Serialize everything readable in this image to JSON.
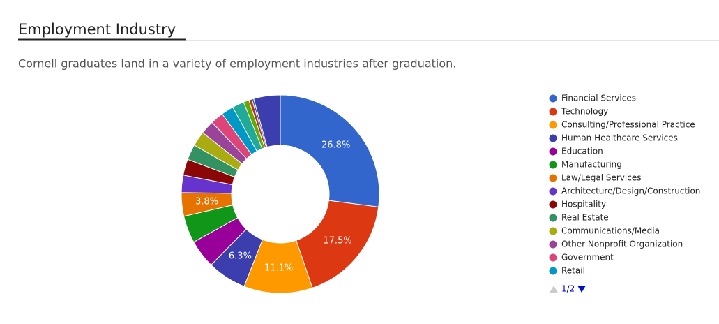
{
  "chart_data": {
    "type": "donut",
    "title": "Employment Industry",
    "subtitle": "Cornell graduates land in a variety of employment industries after graduation.",
    "categories": [
      "Financial Services",
      "Technology",
      "Consulting/Professional Practice",
      "Human Healthcare Services",
      "Education",
      "Manufacturing",
      "Law/Legal Services",
      "Architecture/Design/Construction",
      "Hospitality",
      "Real Estate",
      "Communications/Media",
      "Other Nonprofit Organization",
      "Government",
      "Retail",
      null,
      null,
      null,
      null,
      null
    ],
    "values": [
      26.8,
      17.5,
      11.1,
      6.3,
      4.6,
      4.4,
      3.8,
      2.8,
      2.6,
      2.5,
      2.4,
      2.2,
      2.1,
      2.0,
      1.9,
      0.9,
      0.5,
      0.3,
      4.3
    ],
    "value_labels": [
      "26.8%",
      "17.5%",
      "11.1%",
      "6.3%",
      null,
      null,
      "3.8%",
      null,
      null,
      null,
      null,
      null,
      null,
      null,
      null,
      null,
      null,
      null,
      null
    ],
    "colors": [
      "#3366cc",
      "#dc3912",
      "#ff9900",
      "#3b3eac",
      "#990099",
      "#109618",
      "#e67300",
      "#6633cc",
      "#8b0707",
      "#329262",
      "#aaaa11",
      "#994499",
      "#dd4477",
      "#0099c6",
      "#22aa99",
      "#66aa00",
      "#b82e2e",
      "#316395",
      "#3b3eac"
    ],
    "legend_page": "1/2",
    "legend": "right"
  }
}
